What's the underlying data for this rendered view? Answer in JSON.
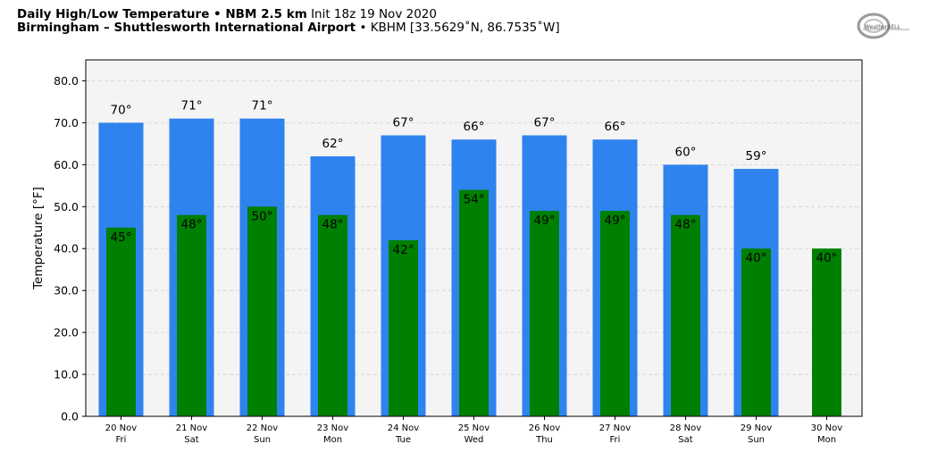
{
  "header": {
    "line1_title": "Daily High/Low Temperature • NBM 2.5 km",
    "line1_init": "Init 18z 19 Nov 2020",
    "line2_site": "Birmingham – Shuttlesworth International Airport",
    "line2_id": "• KBHM [33.5629˚N, 86.7535˚W]"
  },
  "logo": {
    "text": "WeatherBELL",
    "icon": "weatherbell-swirl-logo"
  },
  "colors": {
    "high": "#2e83ee",
    "low": "#008000",
    "plot_bg": "#f4f4f4",
    "grid": "#d0d0d0"
  },
  "chart_data": {
    "type": "bar",
    "ylabel": "Temperature [°F]",
    "ylim": [
      0,
      85
    ],
    "yticks": [
      "0.0",
      "10.0",
      "20.0",
      "30.0",
      "40.0",
      "50.0",
      "60.0",
      "70.0",
      "80.0"
    ],
    "grid": true,
    "categories": [
      [
        "20 Nov",
        "Fri"
      ],
      [
        "21 Nov",
        "Sat"
      ],
      [
        "22 Nov",
        "Sun"
      ],
      [
        "23 Nov",
        "Mon"
      ],
      [
        "24 Nov",
        "Tue"
      ],
      [
        "25 Nov",
        "Wed"
      ],
      [
        "26 Nov",
        "Thu"
      ],
      [
        "27 Nov",
        "Fri"
      ],
      [
        "28 Nov",
        "Sat"
      ],
      [
        "29 Nov",
        "Sun"
      ],
      [
        "30 Nov",
        "Mon"
      ]
    ],
    "series": [
      {
        "key": "high",
        "values": [
          70,
          71,
          71,
          62,
          67,
          66,
          67,
          66,
          60,
          59,
          null
        ],
        "labels": [
          "70°",
          "71°",
          "71°",
          "62°",
          "67°",
          "66°",
          "67°",
          "66°",
          "60°",
          "59°",
          ""
        ]
      },
      {
        "key": "low",
        "values": [
          45,
          48,
          50,
          48,
          42,
          54,
          49,
          49,
          48,
          40,
          40
        ],
        "labels": [
          "45°",
          "48°",
          "50°",
          "48°",
          "42°",
          "54°",
          "49°",
          "49°",
          "48°",
          "40°",
          "40°"
        ]
      }
    ]
  }
}
